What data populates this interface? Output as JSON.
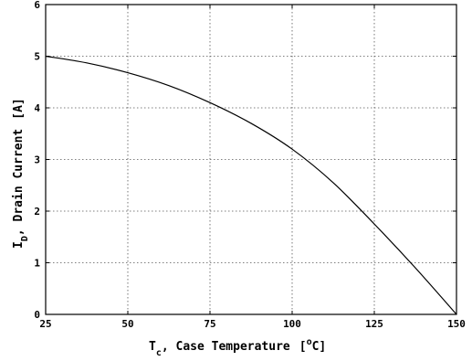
{
  "chart_data": {
    "type": "line",
    "title": "",
    "xlabel": {
      "main": "T",
      "subscript": "c",
      "rest": ", Case Temperature",
      "unit_open": "[",
      "unit_sup": "o",
      "unit_rest": "C]"
    },
    "ylabel": {
      "main": "I",
      "subscript": "D",
      "rest": ", Drain Current",
      "unit": "[A]"
    },
    "xlim": [
      25,
      150
    ],
    "ylim": [
      0,
      6
    ],
    "x_ticks": [
      "25",
      "50",
      "75",
      "100",
      "125",
      "150"
    ],
    "y_ticks": [
      "0",
      "1",
      "2",
      "3",
      "4",
      "5",
      "6"
    ],
    "grid": true,
    "series": [
      {
        "x": [
          25,
          37.5,
          50,
          62.5,
          75,
          87.5,
          100,
          112.5,
          125,
          137.5,
          150
        ],
        "y": [
          5.0,
          4.87,
          4.68,
          4.43,
          4.1,
          3.7,
          3.2,
          2.55,
          1.75,
          0.9,
          0.0
        ]
      }
    ]
  }
}
